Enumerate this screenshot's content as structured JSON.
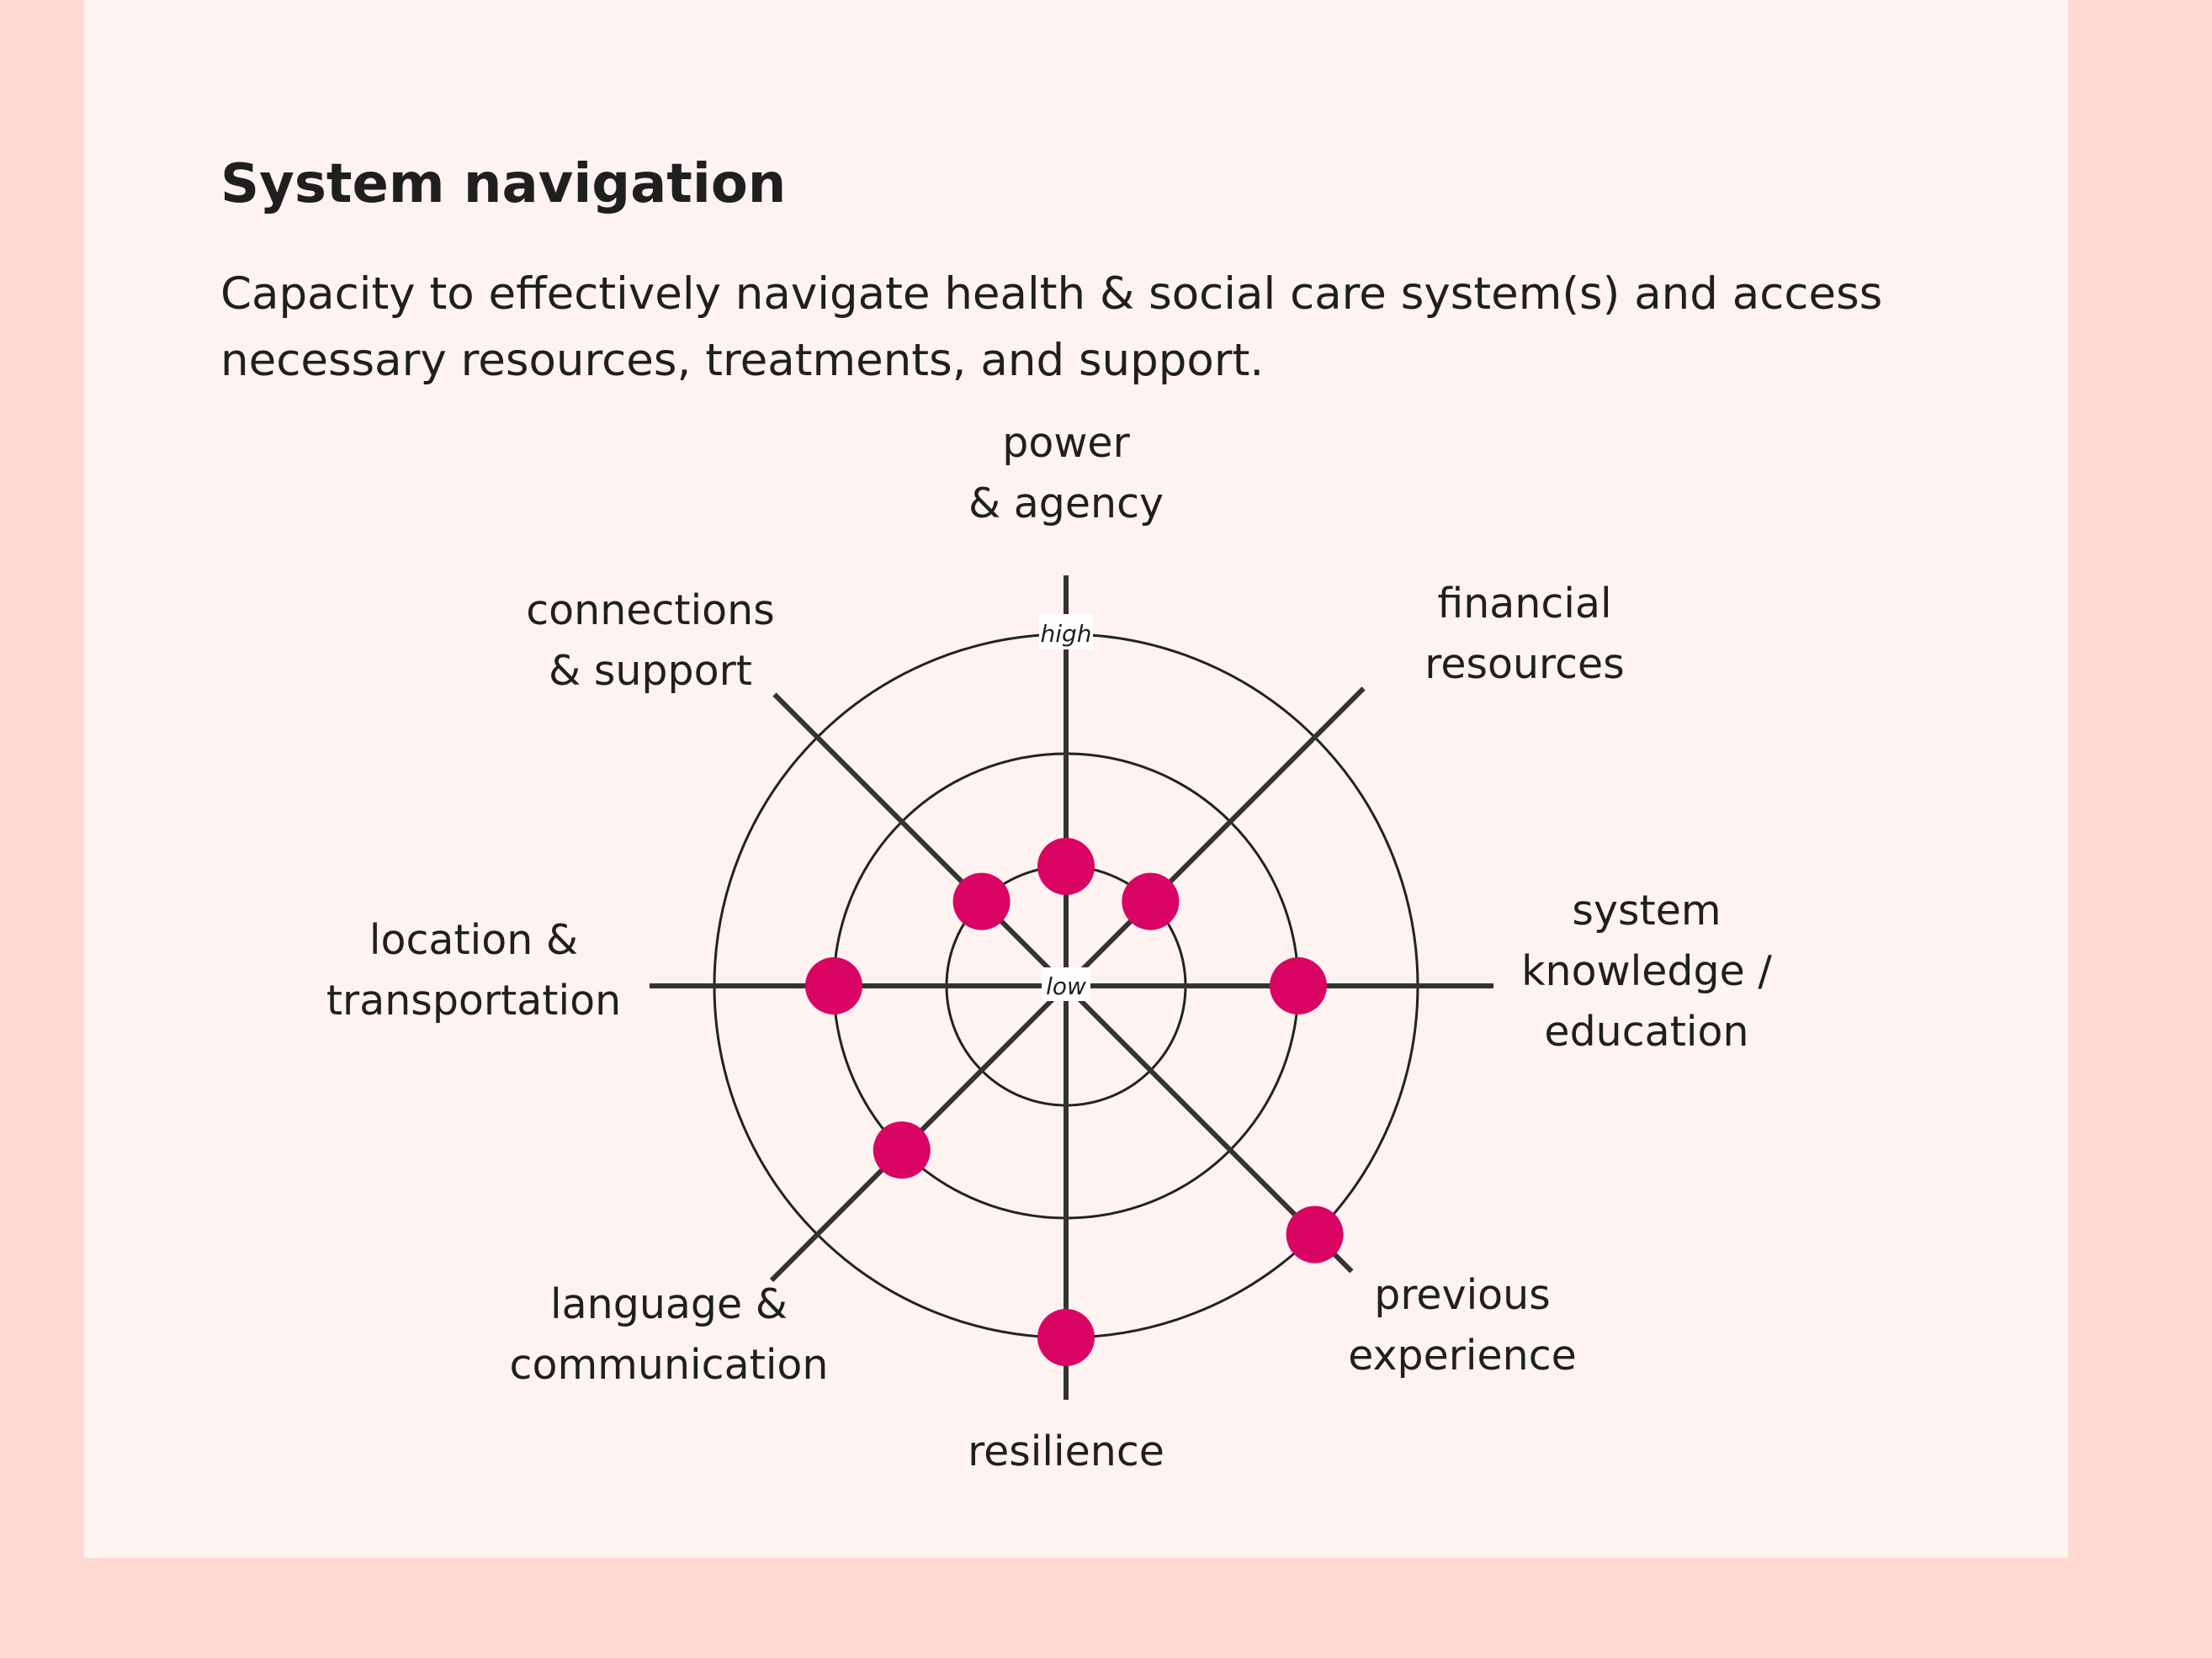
{
  "panel": {
    "title": "System navigation",
    "description": "Capacity to effectively navigate health & social care system(s) and access necessary resources, treatments, and support."
  },
  "colors": {
    "page_background": "#fdd9d2",
    "card_background": "#fff3f1",
    "marker": "#d90463",
    "axis": "#333333"
  },
  "chart_data": {
    "type": "radar",
    "scale_min_label": "low",
    "scale_max_label": "high",
    "rings": 3,
    "range": [
      0,
      3
    ],
    "axes": [
      {
        "label_lines": [
          "power",
          "& agency"
        ],
        "value": 1
      },
      {
        "label_lines": [
          "financial",
          "resources"
        ],
        "value": 1
      },
      {
        "label_lines": [
          "system",
          "knowledge /",
          "education"
        ],
        "value": 2
      },
      {
        "label_lines": [
          "previous",
          "experience"
        ],
        "value": 3
      },
      {
        "label_lines": [
          "resilience"
        ],
        "value": 3
      },
      {
        "label_lines": [
          "language &",
          "communication"
        ],
        "value": 2
      },
      {
        "label_lines": [
          "location &",
          "transportation"
        ],
        "value": 2
      },
      {
        "label_lines": [
          "connections",
          "& support"
        ],
        "value": 1
      }
    ]
  }
}
